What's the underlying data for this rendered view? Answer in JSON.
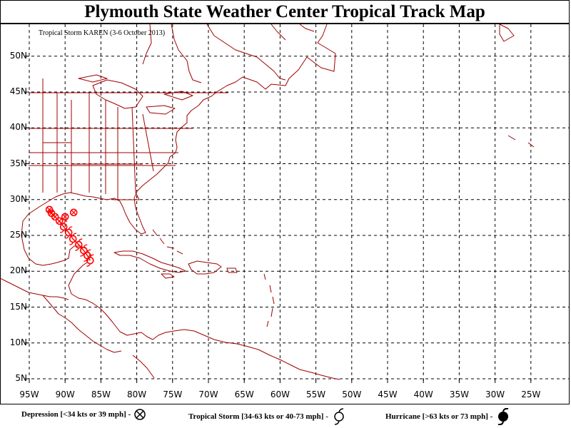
{
  "header": {
    "title": "Plymouth State Weather Center Tropical Track Map",
    "subtitle": "Tropical Storm KAREN (3-6 October 2013)"
  },
  "axes": {
    "lat_labels": [
      "50N",
      "45N",
      "40N",
      "35N",
      "30N",
      "25N",
      "20N",
      "15N",
      "10N",
      "5N"
    ],
    "lat_values": [
      50,
      45,
      40,
      35,
      30,
      25,
      20,
      15,
      10,
      5
    ],
    "lon_labels": [
      "95W",
      "90W",
      "85W",
      "80W",
      "75W",
      "70W",
      "65W",
      "60W",
      "55W",
      "50W",
      "45W",
      "40W",
      "35W",
      "30W",
      "25W"
    ],
    "lon_values": [
      -95,
      -90,
      -85,
      -80,
      -75,
      -70,
      -65,
      -60,
      -55,
      -50,
      -45,
      -40,
      -35,
      -30,
      -25
    ]
  },
  "track": {
    "storm_name": "KAREN",
    "color": "#ff0000",
    "points": [
      {
        "lon": -86.5,
        "lat": 21.5,
        "type": "tropical-storm"
      },
      {
        "lon": -86.9,
        "lat": 22.2,
        "type": "tropical-storm"
      },
      {
        "lon": -87.4,
        "lat": 22.9,
        "type": "tropical-storm"
      },
      {
        "lon": -88.1,
        "lat": 23.7,
        "type": "tropical-storm"
      },
      {
        "lon": -88.9,
        "lat": 24.5,
        "type": "tropical-storm"
      },
      {
        "lon": -89.5,
        "lat": 25.4,
        "type": "tropical-storm"
      },
      {
        "lon": -90.2,
        "lat": 26.2,
        "type": "tropical-storm"
      },
      {
        "lon": -90.8,
        "lat": 27.0,
        "type": "depression"
      },
      {
        "lon": -91.4,
        "lat": 27.6,
        "type": "depression"
      },
      {
        "lon": -91.9,
        "lat": 28.1,
        "type": "depression"
      },
      {
        "lon": -92.2,
        "lat": 28.6,
        "type": "depression"
      },
      {
        "lon": -90.0,
        "lat": 27.6,
        "type": "depression"
      },
      {
        "lon": -88.8,
        "lat": 28.2,
        "type": "depression"
      }
    ]
  },
  "legend": {
    "depression_label": "Depression [<34 kts or 39 mph] -",
    "storm_label": "Tropical Storm [34-63 kts or 40-73 mph] -",
    "hurricane_label": "Hurricane [>63 kts or 73 mph] -"
  },
  "colors": {
    "land_outline": "#a00000",
    "track": "#ff0000",
    "grid": "#000000"
  }
}
